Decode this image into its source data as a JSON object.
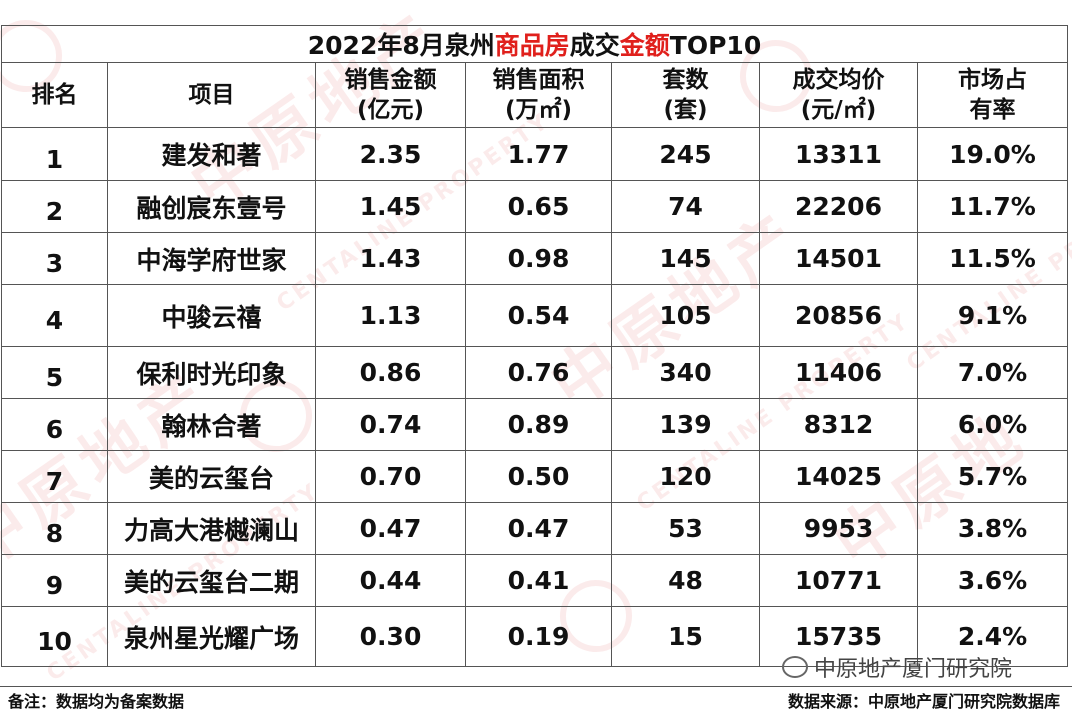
{
  "title": {
    "part1": "2022年8月泉州",
    "part2": "商品房",
    "part3": "成交",
    "part4": "金额",
    "part5": "TOP10"
  },
  "columns": [
    {
      "line1": "排名",
      "line2": ""
    },
    {
      "line1": "项目",
      "line2": ""
    },
    {
      "line1": "销售金额",
      "line2": "(亿元)"
    },
    {
      "line1": "销售面积",
      "line2": "(万㎡)"
    },
    {
      "line1": "套数",
      "line2": "(套)"
    },
    {
      "line1": "成交均价",
      "line2": "(元/㎡)"
    },
    {
      "line1": "市场占",
      "line2": "有率"
    }
  ],
  "rows": [
    {
      "rank": "1",
      "project": "建发和著",
      "amount": "2.35",
      "area": "1.77",
      "units": "245",
      "price": "13311",
      "share": "19.0%"
    },
    {
      "rank": "2",
      "project": "融创宸东壹号",
      "amount": "1.45",
      "area": "0.65",
      "units": "74",
      "price": "22206",
      "share": "11.7%"
    },
    {
      "rank": "3",
      "project": "中海学府世家",
      "amount": "1.43",
      "area": "0.98",
      "units": "145",
      "price": "14501",
      "share": "11.5%"
    },
    {
      "rank": "4",
      "project": "中骏云禧",
      "amount": "1.13",
      "area": "0.54",
      "units": "105",
      "price": "20856",
      "share": "9.1%"
    },
    {
      "rank": "5",
      "project": "保利时光印象",
      "amount": "0.86",
      "area": "0.76",
      "units": "340",
      "price": "11406",
      "share": "7.0%"
    },
    {
      "rank": "6",
      "project": "翰林合著",
      "amount": "0.74",
      "area": "0.89",
      "units": "139",
      "price": "8312",
      "share": "6.0%"
    },
    {
      "rank": "7",
      "project": "美的云玺台",
      "amount": "0.70",
      "area": "0.50",
      "units": "120",
      "price": "14025",
      "share": "5.7%"
    },
    {
      "rank": "8",
      "project": "力高大港樾澜山",
      "amount": "0.47",
      "area": "0.47",
      "units": "53",
      "price": "9953",
      "share": "3.8%"
    },
    {
      "rank": "9",
      "project": "美的云玺台二期",
      "amount": "0.44",
      "area": "0.41",
      "units": "48",
      "price": "10771",
      "share": "3.6%"
    },
    {
      "rank": "10",
      "project": "泉州星光耀广场",
      "amount": "0.30",
      "area": "0.19",
      "units": "15",
      "price": "15735",
      "share": "2.4%"
    }
  ],
  "footer": {
    "note": "备注：数据均为备案数据",
    "source": "数据来源：中原地产厦门研究院数据库"
  },
  "brand": {
    "label": "中原地产厦门研究院",
    "icon": "wechat-icon"
  },
  "colors": {
    "accent_red": "#e0201c",
    "text": "#111111",
    "border": "#555555"
  }
}
